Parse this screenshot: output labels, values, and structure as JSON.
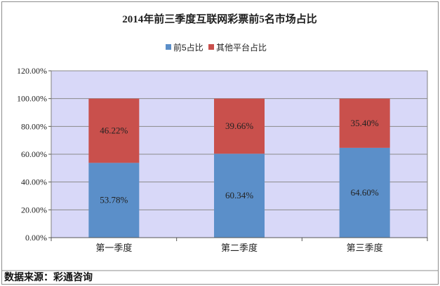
{
  "chart_data": {
    "type": "bar",
    "stacked": true,
    "title": "2014年前三季度互联网彩票前5名市场占比",
    "categories": [
      "第一季度",
      "第二季度",
      "第三季度"
    ],
    "series": [
      {
        "name": "前5占比",
        "values": [
          53.78,
          60.34,
          64.6
        ],
        "labels": [
          "53.78%",
          "60.34%",
          "64.60%"
        ],
        "color": "#5b8fc9"
      },
      {
        "name": "其他平台占比",
        "values": [
          46.22,
          39.66,
          35.4
        ],
        "labels": [
          "46.22%",
          "39.66%",
          "35.40%"
        ],
        "color": "#c9504c"
      }
    ],
    "y_ticks": [
      "0.00%",
      "20.00%",
      "40.00%",
      "60.00%",
      "80.00%",
      "100.00%",
      "120.00%"
    ],
    "ylim": [
      0,
      120
    ],
    "grid": true,
    "legend_position": "top",
    "plot_background": "#d8d8f8"
  },
  "source_note": "数据来源：彩通咨询"
}
